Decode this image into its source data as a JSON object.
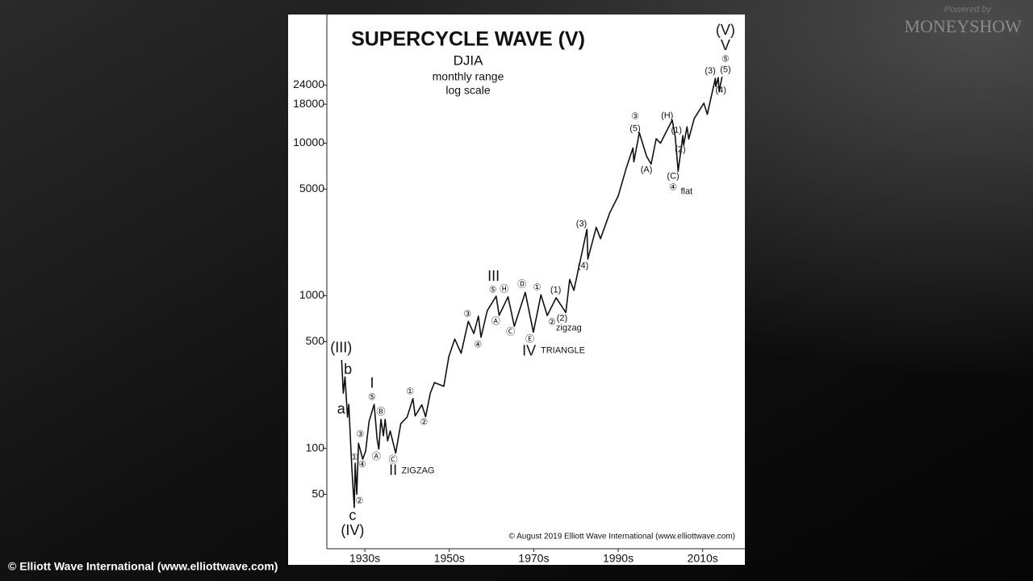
{
  "chart_data": {
    "type": "line",
    "title": "SUPERCYCLE WAVE (V)",
    "subtitle": [
      "DJIA",
      "monthly range",
      "log scale"
    ],
    "source": "© August 2019 Elliott Wave International (www.elliottwave.com)",
    "log_scale": true,
    "color": "#111111",
    "xlim": [
      1926,
      2025
    ],
    "xticks": [
      {
        "value": 1935,
        "label": "1930s"
      },
      {
        "value": 1955,
        "label": "1950s"
      },
      {
        "value": 1975,
        "label": "1970s"
      },
      {
        "value": 1995,
        "label": "1990s"
      },
      {
        "value": 2015,
        "label": "2010s"
      }
    ],
    "ylim": [
      22,
      68000
    ],
    "yticks": [
      50,
      100,
      500,
      1000,
      5000,
      10000,
      18000,
      24000
    ],
    "x": [
      1929.5,
      1929.9,
      1930.3,
      1930.9,
      1931.2,
      1931.9,
      1932.5,
      1932.7,
      1933.1,
      1933.5,
      1934.5,
      1935.2,
      1936.0,
      1937.2,
      1937.9,
      1938.3,
      1938.8,
      1939.4,
      1939.8,
      1940.4,
      1941.0,
      1942.3,
      1943.5,
      1945.0,
      1946.4,
      1946.9,
      1948.5,
      1949.4,
      1950.5,
      1951.5,
      1953.7,
      1954.9,
      1956.3,
      1957.8,
      1959.5,
      1960.8,
      1961.9,
      1962.5,
      1964.0,
      1966.1,
      1966.8,
      1968.9,
      1970.4,
      1973.0,
      1974.9,
      1976.7,
      1978.2,
      1980.3,
      1982.6,
      1983.5,
      1984.5,
      1987.6,
      1987.8,
      1989.8,
      1990.8,
      1993.0,
      1995.0,
      1997.0,
      1998.5,
      1998.7,
      2000.0,
      2001.7,
      2002.8,
      2004.0,
      2005.0,
      2007.8,
      2008.5,
      2009.2,
      2010.3,
      2010.5,
      2011.3,
      2011.7,
      2013.0,
      2015.3,
      2016.1,
      2018.0,
      2018.1,
      2018.7,
      2018.9,
      2019.6
    ],
    "values": [
      380,
      230,
      294,
      160,
      194,
      75,
      41,
      80,
      50,
      108,
      85,
      96,
      150,
      194,
      115,
      99,
      155,
      121,
      155,
      112,
      130,
      93,
      145,
      160,
      212,
      163,
      193,
      161,
      230,
      270,
      255,
      400,
      520,
      420,
      680,
      566,
      735,
      535,
      800,
      995,
      744,
      985,
      631,
      1052,
      577,
      1015,
      742,
      970,
      777,
      1280,
      1086,
      2722,
      1739,
      2810,
      2365,
      3500,
      4500,
      7000,
      9300,
      7540,
      11720,
      8235,
      7286,
      10700,
      10000,
      14165,
      11000,
      6547,
      11200,
      9700,
      12800,
      10650,
      14500,
      18300,
      15450,
      26600,
      23500,
      26900,
      21700,
      27300
    ],
    "annotations": [
      {
        "text": "(III)",
        "x": 1929.4,
        "y": 453
      },
      {
        "text": "b",
        "x": 1931.0,
        "y": 326
      },
      {
        "text": "a",
        "x": 1929.4,
        "y": 179
      },
      {
        "text": "c",
        "x": 1932.1,
        "y": 36
      },
      {
        "text": "(IV)",
        "x": 1932.1,
        "y": 28.6
      },
      {
        "text": "I",
        "x": 1936.7,
        "y": 265
      },
      {
        "text": "⑤",
        "x": 1936.7,
        "y": 216
      },
      {
        "text": "Ⓑ",
        "x": 1938.8,
        "y": 173
      },
      {
        "text": "Ⓐ",
        "x": 1937.7,
        "y": 88
      },
      {
        "text": "Ⓒ",
        "x": 1941.7,
        "y": 84
      },
      {
        "text": "II",
        "x": 1941.7,
        "y": 71
      },
      {
        "text": "ZIGZAG",
        "x": 1947.6,
        "y": 71
      },
      {
        "text": "③",
        "x": 1933.9,
        "y": 123
      },
      {
        "text": "①",
        "x": 1932.5,
        "y": 87
      },
      {
        "text": "④",
        "x": 1934.4,
        "y": 78
      },
      {
        "text": "②",
        "x": 1933.7,
        "y": 45
      },
      {
        "text": "①",
        "x": 1945.7,
        "y": 235
      },
      {
        "text": "②",
        "x": 1949.0,
        "y": 148
      },
      {
        "text": "③",
        "x": 1959.3,
        "y": 755
      },
      {
        "text": "④",
        "x": 1961.8,
        "y": 476
      },
      {
        "text": "III",
        "x": 1965.5,
        "y": 1324
      },
      {
        "text": "⑤",
        "x": 1965.3,
        "y": 1089
      },
      {
        "text": "Ⓗ",
        "x": 1968.0,
        "y": 1102
      },
      {
        "text": "Ⓐ",
        "x": 1966.0,
        "y": 677
      },
      {
        "text": "Ⓒ",
        "x": 1969.5,
        "y": 578
      },
      {
        "text": "Ⓓ",
        "x": 1972.2,
        "y": 1186
      },
      {
        "text": "Ⓔ",
        "x": 1974.1,
        "y": 518
      },
      {
        "text": "IV",
        "x": 1973.9,
        "y": 431
      },
      {
        "text": "TRIANGLE",
        "x": 1981.9,
        "y": 436
      },
      {
        "text": "①",
        "x": 1975.8,
        "y": 1129
      },
      {
        "text": "(1)",
        "x": 1980.2,
        "y": 1089
      },
      {
        "text": "(2)",
        "x": 1981.7,
        "y": 711
      },
      {
        "text": "②",
        "x": 1979.3,
        "y": 669
      },
      {
        "text": "zigzag",
        "x": 1983.3,
        "y": 614
      },
      {
        "text": "(3)",
        "x": 1986.3,
        "y": 2958
      },
      {
        "text": "(4)",
        "x": 1986.7,
        "y": 1570
      },
      {
        "text": "③",
        "x": 1999.0,
        "y": 14960
      },
      {
        "text": "(5)",
        "x": 1999.0,
        "y": 12450
      },
      {
        "text": "(A)",
        "x": 2001.7,
        "y": 6680
      },
      {
        "text": "(H)",
        "x": 2006.6,
        "y": 15130
      },
      {
        "text": "(1)",
        "x": 2008.8,
        "y": 12160
      },
      {
        "text": "(2)",
        "x": 2009.7,
        "y": 9080
      },
      {
        "text": "(C)",
        "x": 2008.0,
        "y": 6070
      },
      {
        "text": "④",
        "x": 2008.0,
        "y": 5120
      },
      {
        "text": "flat",
        "x": 2011.2,
        "y": 4820
      },
      {
        "text": "(3)",
        "x": 2016.8,
        "y": 29600
      },
      {
        "text": "⑤",
        "x": 2020.4,
        "y": 35500
      },
      {
        "text": "(5)",
        "x": 2020.4,
        "y": 30300
      },
      {
        "text": "(4)",
        "x": 2019.3,
        "y": 22100
      },
      {
        "text": "(V)",
        "x": 2020.4,
        "y": 54300
      },
      {
        "text": "V",
        "x": 2020.4,
        "y": 43100
      }
    ]
  },
  "caption": "© Elliott Wave International (www.elliottwave.com)",
  "branding": {
    "powered_by": "Powered by",
    "name": "MONEYSHOW"
  }
}
